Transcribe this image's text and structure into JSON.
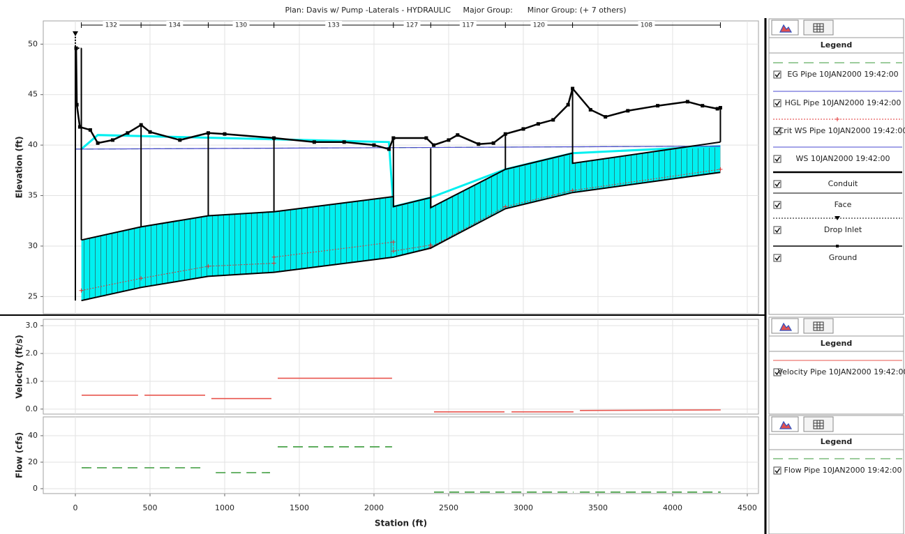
{
  "chart_data": [
    {
      "type": "profile",
      "title": "Plan: Davis w/ Pump -Laterals - HYDRAULIC     Major Group:      Minor Group: (+ 7 others)",
      "ylabel": "Elevation (ft)",
      "legend_title": "Legend",
      "xlim": [
        -215,
        4575
      ],
      "ylim": [
        23.3,
        52.3
      ],
      "yticks": [
        25,
        30,
        35,
        40,
        45,
        50
      ],
      "grid": true,
      "pipe_labels": [
        "132",
        "134",
        "130",
        "133",
        "127",
        "117",
        "120",
        "108"
      ],
      "series": [
        {
          "name": "EG Pipe 10JAN2000 19:42:00",
          "color": "#3a9a3a",
          "style": "dashed",
          "x": [
            0,
            4320
          ],
          "values": [
            39.6,
            39.9
          ]
        },
        {
          "name": "HGL Pipe 10JAN2000 19:42:00",
          "color": "#4848d0",
          "style": "solid",
          "x": [
            0,
            4320
          ],
          "values": [
            39.6,
            39.9
          ]
        },
        {
          "name": "Crit WS Pipe 10JAN2000 19:42:00",
          "color": "#e03030",
          "style": "cross",
          "x": [
            40,
            440,
            890,
            1330,
            1330,
            2130,
            2130,
            2380,
            2380,
            2880,
            3330,
            4320
          ],
          "values": [
            25.6,
            26.8,
            28.0,
            28.3,
            28.9,
            30.4,
            29.5,
            30.1,
            29.9,
            33.9,
            35.5,
            37.6
          ]
        },
        {
          "name": "WS 10JAN2000 19:42:00",
          "color": "#00f0f0",
          "style": "fill",
          "x": [
            40,
            150,
            2100,
            2130,
            2380,
            2880,
            3330,
            4320
          ],
          "values": [
            39.6,
            41.0,
            40.3,
            33.9,
            34.8,
            37.6,
            39.2,
            39.9
          ]
        },
        {
          "name": "Conduit",
          "color": "#000000",
          "style": "conduit",
          "x": [
            40,
            440,
            890,
            1330,
            2130,
            2130,
            2380,
            2380,
            2880,
            3330,
            3330,
            4320
          ],
          "values": [
            30.6,
            31.9,
            33.0,
            33.4,
            34.9,
            33.9,
            34.8,
            33.8,
            37.6,
            39.2,
            38.2,
            40.3
          ],
          "invert_x": [
            40,
            440,
            890,
            1330,
            2130,
            2380,
            2880,
            3330,
            4320
          ],
          "invert": [
            24.6,
            25.9,
            27.0,
            27.4,
            28.9,
            29.8,
            33.7,
            35.3,
            37.3
          ]
        },
        {
          "name": "Face",
          "color": "#000000",
          "style": "face",
          "x": [
            40,
            440,
            890,
            1330,
            2130,
            2380,
            2880,
            3330,
            4320
          ],
          "values": [
            49.6,
            42.0,
            41.2,
            40.7,
            40.7,
            39.7,
            41.1,
            45.4,
            43.7
          ],
          "bottom": [
            30.6,
            31.9,
            33.0,
            33.4,
            33.9,
            33.8,
            37.6,
            38.2,
            40.3
          ]
        },
        {
          "name": "Drop Inlet",
          "color": "#000000",
          "style": "drop",
          "x": [
            0,
            0,
            40
          ],
          "values": [
            51.0,
            49.6,
            49.6
          ]
        },
        {
          "name": "Ground",
          "color": "#000000",
          "style": "markers",
          "x": [
            5,
            10,
            30,
            100,
            150,
            250,
            350,
            440,
            500,
            700,
            890,
            1000,
            1330,
            1600,
            1800,
            2000,
            2100,
            2130,
            2350,
            2400,
            2500,
            2560,
            2700,
            2800,
            2880,
            3000,
            3100,
            3200,
            3300,
            3330,
            3450,
            3550,
            3700,
            3900,
            4100,
            4200,
            4300,
            4320
          ],
          "values": [
            49.6,
            44.0,
            41.8,
            41.5,
            40.2,
            40.5,
            41.2,
            42.0,
            41.3,
            40.5,
            41.2,
            41.1,
            40.7,
            40.3,
            40.3,
            40.0,
            39.6,
            40.7,
            40.7,
            40.0,
            40.5,
            41.0,
            40.1,
            40.2,
            41.1,
            41.6,
            42.1,
            42.5,
            44.0,
            45.6,
            43.5,
            42.8,
            43.4,
            43.9,
            44.3,
            43.9,
            43.6,
            43.7
          ]
        }
      ]
    },
    {
      "type": "segments",
      "ylabel": "Velocity (ft/s)",
      "legend_title": "Legend",
      "xlim": [
        -215,
        4575
      ],
      "ylim": [
        -0.18,
        3.23
      ],
      "yticks": [
        {
          "value": 0,
          "label": "0.0"
        },
        {
          "value": 1,
          "label": "1.0"
        },
        {
          "value": 2,
          "label": "2.0"
        },
        {
          "value": 3,
          "label": "3.0"
        }
      ],
      "grid": true,
      "series": [
        {
          "name": "Velocity Pipe 10JAN2000 19:42:00",
          "color": "#e8554e",
          "style": "solid",
          "segments": [
            {
              "x": [
                42,
                420
              ],
              "values": [
                0.5,
                0.5
              ]
            },
            {
              "x": [
                463,
                869
              ],
              "values": [
                0.5,
                0.5
              ]
            },
            {
              "x": [
                911,
                1313
              ],
              "values": [
                0.38,
                0.38
              ]
            },
            {
              "x": [
                1355,
                2121
              ],
              "values": [
                1.11,
                1.11
              ]
            },
            {
              "x": [
                2402,
                2874
              ],
              "values": [
                -0.1,
                -0.1
              ]
            },
            {
              "x": [
                2921,
                3336
              ],
              "values": [
                -0.1,
                -0.1
              ]
            },
            {
              "x": [
                3379,
                4322
              ],
              "values": [
                -0.05,
                -0.03
              ]
            }
          ]
        }
      ]
    },
    {
      "type": "segments",
      "ylabel": "Flow (cfs)",
      "xlabel": "Station (ft)",
      "legend_title": "Legend",
      "xlim": [
        -215,
        4575
      ],
      "ylim": [
        -3.7,
        54.2
      ],
      "xticks": [
        0,
        500,
        1000,
        1500,
        2000,
        2500,
        3000,
        3500,
        4000,
        4500
      ],
      "yticks": [
        0,
        20,
        40
      ],
      "grid": true,
      "series": [
        {
          "name": "Flow Pipe 10JAN2000 19:42:00",
          "color": "#3a9a3a",
          "style": "dashed",
          "segments": [
            {
              "x": [
                42,
                420
              ],
              "values": [
                15.8,
                15.8
              ]
            },
            {
              "x": [
                463,
                869
              ],
              "values": [
                15.8,
                15.8
              ]
            },
            {
              "x": [
                940,
                1304
              ],
              "values": [
                12.1,
                12.1
              ]
            },
            {
              "x": [
                1355,
                2121
              ],
              "values": [
                31.6,
                31.6
              ]
            },
            {
              "x": [
                2402,
                2874
              ],
              "values": [
                -2.6,
                -2.6
              ]
            },
            {
              "x": [
                2921,
                3336
              ],
              "values": [
                -2.6,
                -2.6
              ]
            },
            {
              "x": [
                3379,
                4322
              ],
              "values": [
                -2.6,
                -2.6
              ]
            }
          ]
        }
      ]
    }
  ]
}
